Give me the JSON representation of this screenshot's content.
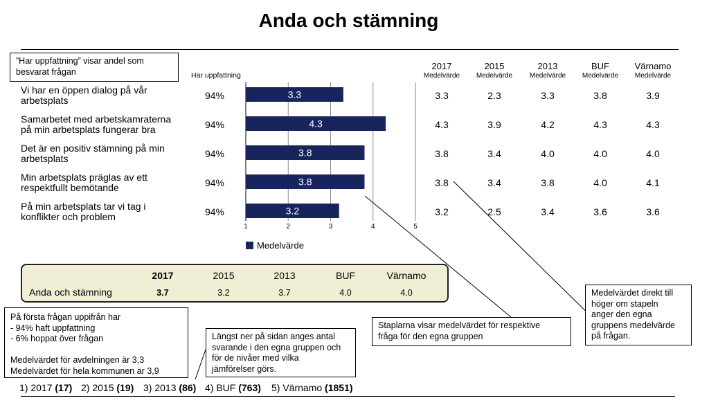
{
  "title": "Anda och stämning",
  "har_uppfattning_header": "Har uppfattning",
  "callouts": {
    "har_uppfattning": [
      "”Har uppfattning” visar andel som",
      "besvarat frågan"
    ],
    "forsta_fragan": [
      "På första frågan uppifrån har",
      "-   94% haft uppfattning",
      "-   6% hoppat över frågan",
      "",
      "Medelvärdet för avdelningen är 3,3",
      "Medelvärdet för hela kommunen är 3,9"
    ],
    "langst_ner": [
      "Längst ner på sidan anges antal",
      "svarande i den egna gruppen och",
      "för de nivåer med vilka",
      "jämförelser görs."
    ],
    "staplarna": [
      "Staplarna visar medelvärdet för respektive",
      "fråga för den egna gruppen"
    ],
    "medelvardet_direkt": [
      "Medelvärdet direkt till",
      "höger om stapeln",
      "anger den egna",
      "gruppens medelvärde",
      "på frågan."
    ]
  },
  "columns": [
    {
      "year": "2017",
      "sub": "Medelvärde"
    },
    {
      "year": "2015",
      "sub": "Medelvärde"
    },
    {
      "year": "2013",
      "sub": "Medelvärde"
    },
    {
      "year": "BUF",
      "sub": "Medelvärde"
    },
    {
      "year": "Värnamo",
      "sub": "Medelvärde"
    }
  ],
  "rows": [
    {
      "question": [
        "Vi har en öppen dialog på vår",
        "arbetsplats"
      ],
      "pct": "94%",
      "values": [
        "3.3",
        "2.3",
        "3.3",
        "3.8",
        "3.9"
      ]
    },
    {
      "question": [
        "Samarbetet med arbetskamraterna",
        "på min arbetsplats fungerar bra"
      ],
      "pct": "94%",
      "values": [
        "4.3",
        "3.9",
        "4.2",
        "4.3",
        "4.3"
      ]
    },
    {
      "question": [
        "Det är en positiv stämning på min",
        "arbetsplats"
      ],
      "pct": "94%",
      "values": [
        "3.8",
        "3.4",
        "4.0",
        "4.0",
        "4.0"
      ]
    },
    {
      "question": [
        "Min arbetsplats präglas av ett",
        "respektfullt bemötande"
      ],
      "pct": "94%",
      "values": [
        "3.8",
        "3.4",
        "3.8",
        "4.0",
        "4.1"
      ]
    },
    {
      "question": [
        "På min arbetsplats tar vi tag i",
        "konflikter och problem"
      ],
      "pct": "94%",
      "values": [
        "3.2",
        "2.5",
        "3.4",
        "3.6",
        "3.6"
      ]
    }
  ],
  "chart_data": {
    "type": "bar",
    "orientation": "horizontal",
    "categories": [
      "Vi har en öppen dialog på vår arbetsplats",
      "Samarbetet med arbetskamraterna på min arbetsplats fungerar bra",
      "Det är en positiv stämning på min arbetsplats",
      "Min arbetsplats präglas av ett respektfullt bemötande",
      "På min arbetsplats tar vi tag i konflikter och problem"
    ],
    "series": [
      {
        "name": "Medelvärde",
        "values": [
          3.3,
          4.3,
          3.8,
          3.8,
          3.2
        ],
        "color": "#17255c"
      }
    ],
    "data_labels": [
      "3.3",
      "4.3",
      "3.8",
      "3.8",
      "3.2"
    ],
    "xlim": [
      1,
      5
    ],
    "xticks": [
      "1",
      "2",
      "3",
      "4",
      "5"
    ],
    "grid": true,
    "legend": "bottom-left",
    "legend_label": "Medelvärde",
    "xlabel": "",
    "ylabel": ""
  },
  "summary": {
    "label": "Anda och stämning",
    "headers": [
      "2017",
      "2015",
      "2013",
      "BUF",
      "Värnamo"
    ],
    "values": [
      "3.7",
      "3.2",
      "3.7",
      "4.0",
      "4.0"
    ],
    "background": "#f1eed6"
  },
  "footer": [
    {
      "label": "1) 2017 ",
      "count": "(17)"
    },
    {
      "label": "2) 2015 ",
      "count": "(19)"
    },
    {
      "label": "3) 2013 ",
      "count": "(86)"
    },
    {
      "label": "4) BUF ",
      "count": "(763)"
    },
    {
      "label": "5) Värnamo ",
      "count": "(1851)"
    }
  ]
}
